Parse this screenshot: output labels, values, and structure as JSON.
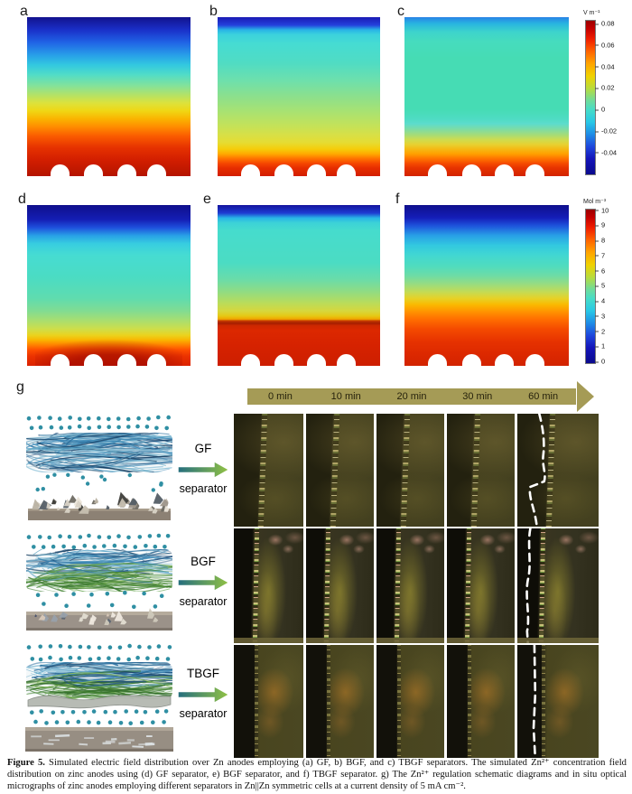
{
  "panels": {
    "labels": [
      "a",
      "b",
      "c",
      "d",
      "e",
      "f",
      "g"
    ]
  },
  "colorbars": [
    {
      "title": "V m⁻¹",
      "ticks": [
        "0.08",
        "0.06",
        "0.04",
        "0.02",
        "0",
        "-0.02",
        "-0.04"
      ]
    },
    {
      "title": "Mol m⁻³",
      "ticks": [
        "10",
        "9",
        "8",
        "7",
        "6",
        "5",
        "4",
        "3",
        "2",
        "1",
        "0"
      ]
    }
  ],
  "timeline": {
    "labels": [
      "0 min",
      "10 min",
      "20 min",
      "30 min",
      "60 min"
    ]
  },
  "separators": [
    {
      "label_top": "GF",
      "label_bottom": "separator"
    },
    {
      "label_top": "BGF",
      "label_bottom": "separator"
    },
    {
      "label_top": "TBGF",
      "label_bottom": "separator"
    }
  ],
  "micrographs": {
    "rows": [
      "GF",
      "BGF",
      "TBGF"
    ],
    "columns": 5,
    "dashed_last_column": true
  },
  "caption": {
    "label": "Figure 5.",
    "text": " Simulated electric field distribution over Zn anodes employing (a) GF, b) BGF, and c) TBGF separators. The simulated Zn²⁺ concentration field distribution on zinc anodes using (d) GF separator, e) BGF separator, and f) TBGF separator. g) The Zn²⁺ regulation schematic diagrams and in situ optical micrographs of zinc anodes employing different separators in Zn||Zn symmetric cells at a current density of 5 mA cm⁻²."
  },
  "colors": {
    "timeline_arrow": "#a59b56",
    "separator_arrow_start": "#266f7e",
    "separator_arrow_end": "#8fc045",
    "ion_dot": "#2f8fa3",
    "dashed_line": "#ffffff",
    "jet_top": "#9b0000",
    "jet_bottom": "#0a0a8c",
    "micrograph_olive": "#45421f"
  }
}
